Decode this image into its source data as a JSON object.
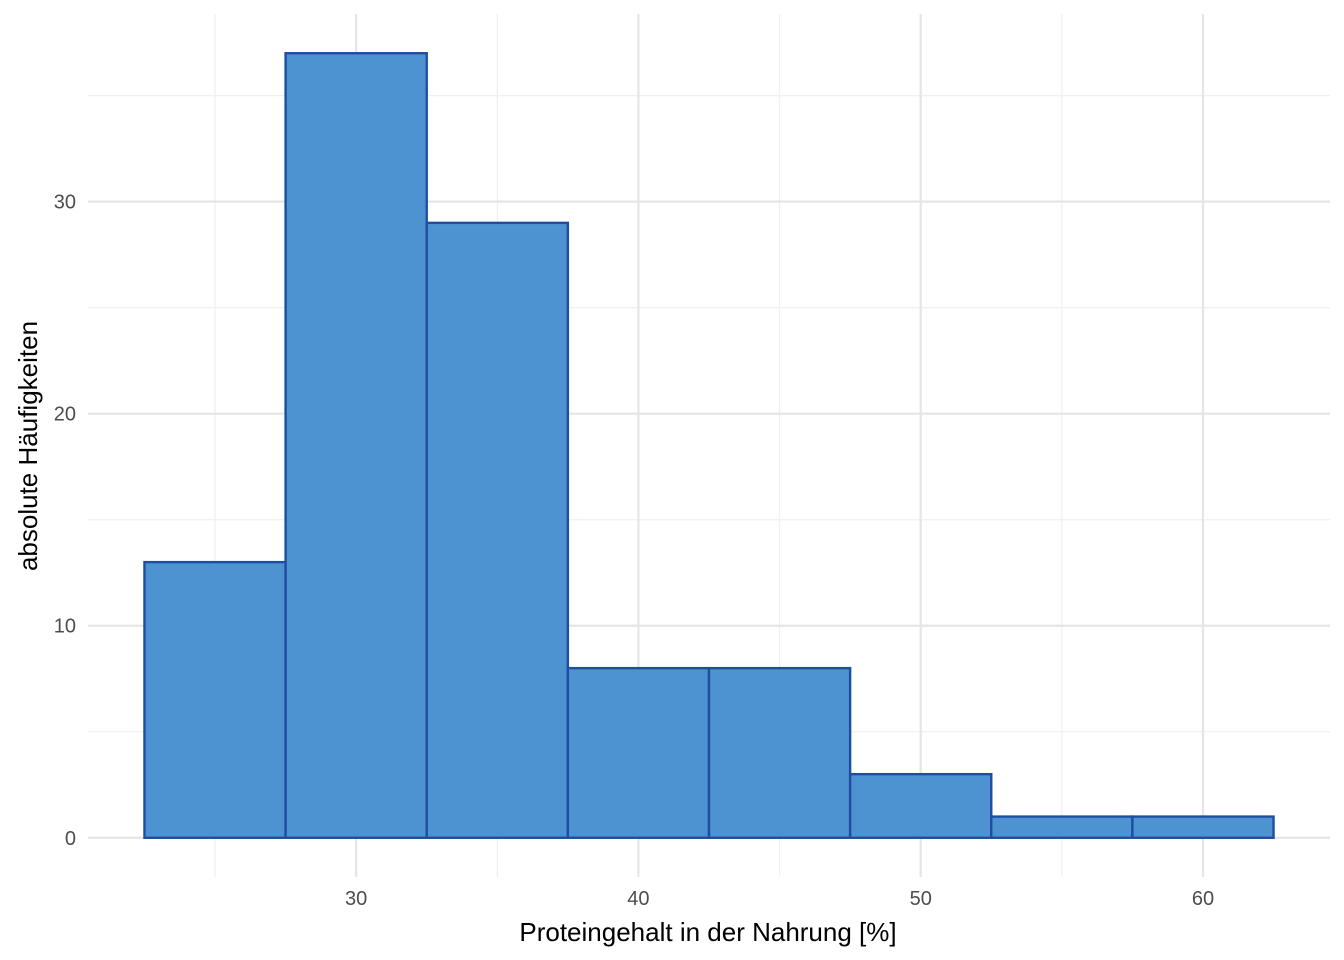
{
  "chart_data": {
    "type": "bar",
    "subtype": "histogram",
    "bins": [
      {
        "x0": 22.5,
        "x1": 27.5,
        "count": 13
      },
      {
        "x0": 27.5,
        "x1": 32.5,
        "count": 37
      },
      {
        "x0": 32.5,
        "x1": 37.5,
        "count": 29
      },
      {
        "x0": 37.5,
        "x1": 42.5,
        "count": 8
      },
      {
        "x0": 42.5,
        "x1": 47.5,
        "count": 8
      },
      {
        "x0": 47.5,
        "x1": 52.5,
        "count": 3
      },
      {
        "x0": 52.5,
        "x1": 57.5,
        "count": 1
      },
      {
        "x0": 57.5,
        "x1": 62.5,
        "count": 1
      }
    ],
    "xlabel": "Proteingehalt in der Nahrung [%]",
    "ylabel": "absolute Häufigkeiten",
    "xticks": [
      30,
      40,
      50,
      60
    ],
    "yticks": [
      0,
      10,
      20,
      30
    ],
    "xlim": [
      20.5,
      64.5
    ],
    "ylim": [
      -1.85,
      38.85
    ],
    "grid": true,
    "colors": {
      "fill": "#4d92d1",
      "outline": "#1f4ea0",
      "grid": "#e5e5e5"
    }
  }
}
